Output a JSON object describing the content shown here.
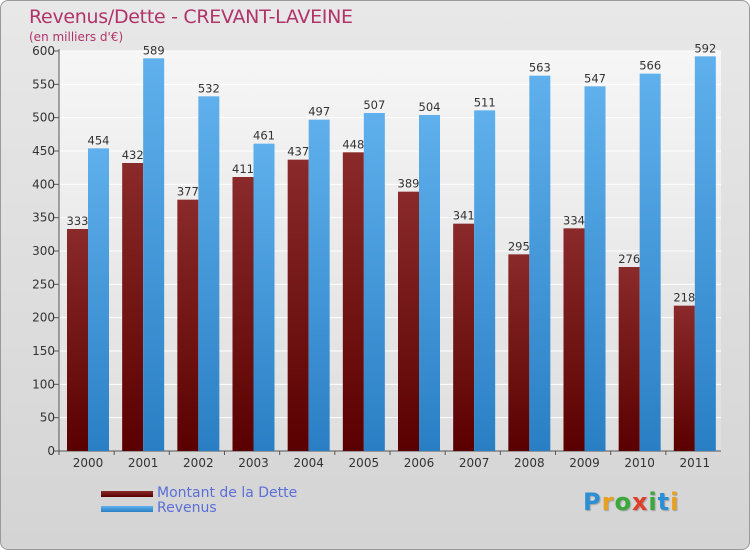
{
  "title": "Revenus/Dette - CREVANT-LAVEINE",
  "subtitle": "(en milliers d'€)",
  "colors": {
    "dette_dark": "#5a0000",
    "dette_light": "#8a2a2a",
    "revenus_dark": "#2a7fc4",
    "revenus_light": "#5fb0ec",
    "title": "#b1336a",
    "legend_text": "#5a6fd8"
  },
  "legend": {
    "dette_label": "Montant de la Dette",
    "revenus_label": "Revenus"
  },
  "logo": {
    "letters": [
      "P",
      "r",
      "o",
      "x",
      "i",
      "t",
      "i"
    ]
  },
  "chart_data": {
    "type": "bar",
    "categories": [
      "2000",
      "2001",
      "2002",
      "2003",
      "2004",
      "2005",
      "2006",
      "2007",
      "2008",
      "2009",
      "2010",
      "2011"
    ],
    "series": [
      {
        "name": "Montant de la Dette",
        "values": [
          333,
          432,
          377,
          411,
          437,
          448,
          389,
          341,
          295,
          334,
          276,
          218
        ]
      },
      {
        "name": "Revenus",
        "values": [
          454,
          589,
          532,
          461,
          497,
          507,
          504,
          511,
          563,
          547,
          566,
          592
        ]
      }
    ],
    "ylim": [
      0,
      600
    ],
    "yticks": [
      0,
      50,
      100,
      150,
      200,
      250,
      300,
      350,
      400,
      450,
      500,
      550,
      600
    ],
    "grid": true,
    "legend_position": "bottom-left"
  }
}
